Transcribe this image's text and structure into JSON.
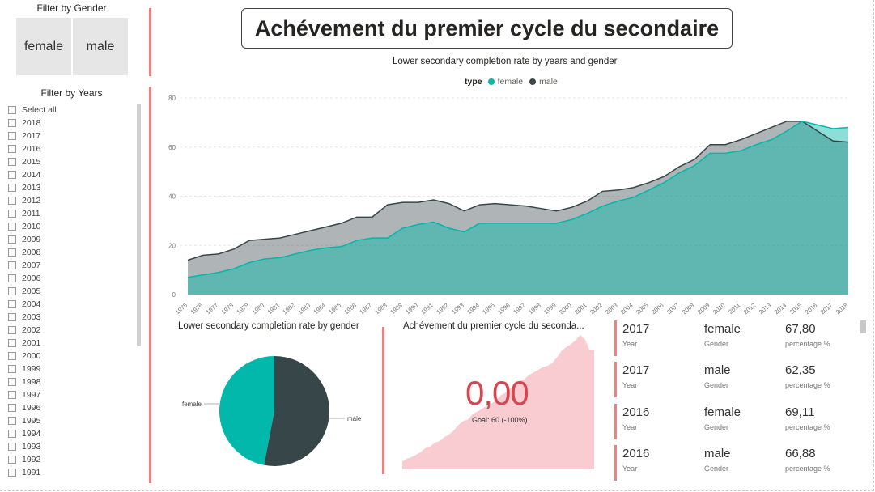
{
  "title": "Achévement du premier cycle du secondaire",
  "gender_slicer": {
    "title": "Filter by Gender",
    "options": [
      "female",
      "male"
    ]
  },
  "years_slicer": {
    "title": "Filter by Years",
    "items": [
      "Select all",
      "2018",
      "2017",
      "2016",
      "2015",
      "2014",
      "2013",
      "2012",
      "2011",
      "2010",
      "2009",
      "2008",
      "2007",
      "2006",
      "2005",
      "2004",
      "2003",
      "2002",
      "2001",
      "2000",
      "1999",
      "1998",
      "1997",
      "1996",
      "1995",
      "1994",
      "1993",
      "1992",
      "1991"
    ]
  },
  "colors": {
    "female": "#01b8aa",
    "male": "#374649",
    "accent": "#f08080",
    "kpi": "#d64550",
    "kpi_area": "#f8ccd1"
  },
  "area_chart": {
    "title": "Lower secondary completion rate by years and gender",
    "legend_title": "type",
    "chart_data": {
      "type": "area",
      "x": [
        "1975",
        "1976",
        "1977",
        "1978",
        "1979",
        "1980",
        "1981",
        "1982",
        "1983",
        "1984",
        "1985",
        "1986",
        "1987",
        "1988",
        "1989",
        "1990",
        "1991",
        "1992",
        "1993",
        "1994",
        "1995",
        "1996",
        "1997",
        "1998",
        "1999",
        "2000",
        "2001",
        "2002",
        "2003",
        "2004",
        "2005",
        "2006",
        "2007",
        "2008",
        "2009",
        "2010",
        "2011",
        "2012",
        "2013",
        "2014",
        "2015",
        "2016",
        "2017",
        "2018"
      ],
      "series": [
        {
          "name": "female",
          "values": [
            7,
            8,
            9,
            10.5,
            13,
            14.5,
            15,
            16.5,
            18,
            19,
            19.5,
            22,
            23,
            23,
            27,
            28.5,
            29.5,
            27,
            25.5,
            29,
            29,
            29,
            29,
            29,
            29,
            30.5,
            33,
            36,
            38,
            39.5,
            42.5,
            45.5,
            49.5,
            52.5,
            57.5,
            57.5,
            58.5,
            61,
            63,
            66.5,
            70.5,
            69,
            67.5,
            68
          ]
        },
        {
          "name": "male",
          "values": [
            14,
            16,
            16.5,
            18.5,
            22,
            22.5,
            23,
            24.5,
            26,
            27.5,
            29,
            31.5,
            31.5,
            36.5,
            37.5,
            37.5,
            38.5,
            37,
            34,
            36.5,
            37,
            36.5,
            36,
            35,
            34,
            35.5,
            38,
            42,
            42.5,
            43.5,
            45.5,
            48,
            52,
            55,
            61,
            61,
            63,
            65.5,
            68,
            70.5,
            70.5,
            66.5,
            62.5,
            62
          ]
        }
      ],
      "ylim": [
        0,
        80
      ],
      "yticks": [
        0,
        20,
        40,
        60,
        80
      ],
      "grid": true,
      "legend_position": "top-center"
    }
  },
  "pie_chart": {
    "title": "Lower secondary completion rate by gender",
    "chart_data": {
      "type": "pie",
      "labels": [
        "female",
        "male"
      ],
      "values": [
        47,
        53
      ]
    }
  },
  "kpi": {
    "title": "Achévement du premier cycle du seconda...",
    "value": "0,00",
    "flag": "!",
    "goal": "Goal: 60 (-100%)",
    "trend_values": [
      6,
      8,
      9,
      11,
      13,
      16,
      17,
      20,
      21,
      24,
      26,
      29,
      33,
      36,
      37,
      41,
      43,
      45,
      47,
      49,
      51,
      55,
      57,
      60,
      63,
      66,
      67,
      70,
      72,
      74,
      76,
      77,
      79,
      83,
      88,
      91,
      93,
      96,
      100,
      97,
      89,
      89
    ]
  },
  "cards": [
    {
      "year": "2017",
      "gender": "female",
      "value": "67,80"
    },
    {
      "year": "2017",
      "gender": "male",
      "value": "62,35"
    },
    {
      "year": "2016",
      "gender": "female",
      "value": "69,11"
    },
    {
      "year": "2016",
      "gender": "male",
      "value": "66,88"
    }
  ],
  "card_labels": {
    "year": "Year",
    "gender": "Gender",
    "value": "percentage %"
  }
}
